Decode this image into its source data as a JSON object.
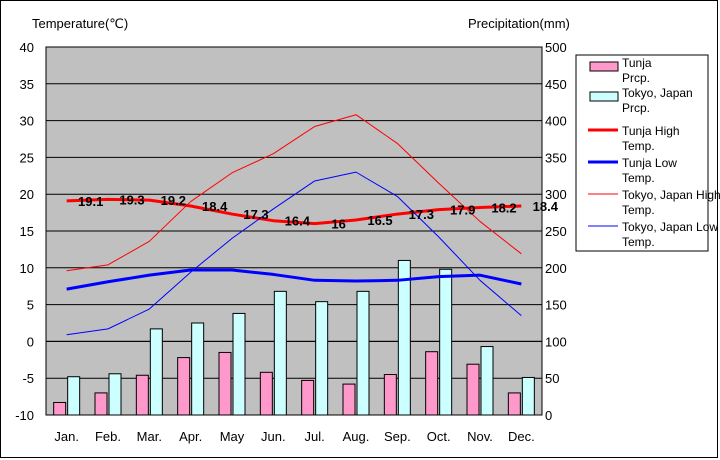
{
  "chart_data": {
    "type": "bar",
    "title": "",
    "y_left_label": "Temperature(℃)",
    "y_right_label": "Precipitation(mm)",
    "y_left_range": [
      -10,
      40
    ],
    "y_left_ticks": [
      "40",
      "35",
      "30",
      "25",
      "20",
      "15",
      "10",
      "5",
      "0",
      "-5",
      "-10"
    ],
    "y_right_range": [
      0,
      500
    ],
    "y_right_ticks": [
      "500",
      "450",
      "400",
      "350",
      "300",
      "250",
      "200",
      "150",
      "100",
      "50",
      "0"
    ],
    "categories": [
      "Jan.",
      "Feb.",
      "Mar.",
      "Apr.",
      "May",
      "Jun.",
      "Jul.",
      "Aug.",
      "Sep.",
      "Oct.",
      "Nov.",
      "Dec."
    ],
    "grid": true,
    "legend_position": "right",
    "series": [
      {
        "name": "Tunja Prcp.",
        "kind": "bar",
        "axis": "right",
        "color": "#ff99cc",
        "values": [
          17,
          30,
          54,
          78,
          85,
          58,
          47,
          42,
          55,
          86,
          69,
          30
        ]
      },
      {
        "name": "Tokyo, Japan Prcp.",
        "kind": "bar",
        "axis": "right",
        "color": "#ccffff",
        "values": [
          52,
          56,
          117,
          125,
          138,
          168,
          154,
          168,
          210,
          198,
          93,
          51
        ]
      },
      {
        "name": "Tunja High Temp.",
        "kind": "line",
        "axis": "left",
        "color": "#ff0000",
        "width": 3,
        "values": [
          19.1,
          19.3,
          19.2,
          18.4,
          17.3,
          16.4,
          16,
          16.5,
          17.3,
          17.9,
          18.2,
          18.4
        ],
        "labels": [
          "19.1",
          "19.3",
          "19.2",
          "18.4",
          "17.3",
          "16.4",
          "16",
          "16.5",
          "17.3",
          "17.9",
          "18.2",
          "18.4"
        ]
      },
      {
        "name": "Tunja Low Temp.",
        "kind": "line",
        "axis": "left",
        "color": "#0000ff",
        "width": 3,
        "values": [
          7.1,
          8.1,
          9.0,
          9.7,
          9.7,
          9.1,
          8.3,
          8.2,
          8.3,
          8.8,
          9.0,
          7.8
        ]
      },
      {
        "name": "Tokyo, Japan High Temp.",
        "kind": "line",
        "axis": "left",
        "color": "#ff0000",
        "width": 1,
        "values": [
          9.6,
          10.4,
          13.6,
          19.0,
          22.9,
          25.5,
          29.2,
          30.8,
          26.9,
          21.5,
          16.3,
          11.9
        ]
      },
      {
        "name": "Tokyo, Japan Low Temp.",
        "kind": "line",
        "axis": "left",
        "color": "#0000ff",
        "width": 1,
        "values": [
          0.9,
          1.7,
          4.4,
          9.4,
          14.0,
          18.0,
          21.8,
          23.0,
          19.7,
          14.2,
          8.3,
          3.5
        ]
      }
    ]
  }
}
